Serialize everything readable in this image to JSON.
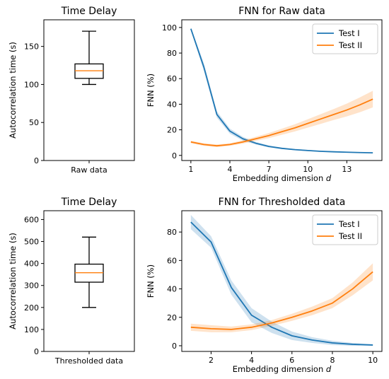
{
  "colors": {
    "test_i": "#1f77b4",
    "test_ii": "#ff7f0e",
    "axis": "#000000"
  },
  "chart_data": [
    {
      "type": "box",
      "title": "Time Delay",
      "ylabel": "Autocorrelation time (s)",
      "categories": [
        "Raw data"
      ],
      "ylim": [
        0,
        185
      ],
      "yticks": [
        0,
        50,
        100,
        150
      ],
      "box": {
        "whisker_low": 100,
        "q1": 108,
        "median": 118,
        "q3": 127,
        "whisker_high": 170
      },
      "grid": false
    },
    {
      "type": "line",
      "title": "FNN for Raw data",
      "xlabel": "Embedding dimension",
      "xlabel_var": "d",
      "ylabel": "FNN (%)",
      "xlim": [
        0.3,
        15.7
      ],
      "ylim": [
        -4,
        106
      ],
      "xticks": [
        1,
        4,
        7,
        10,
        13
      ],
      "yticks": [
        0,
        20,
        40,
        60,
        80,
        100
      ],
      "legend": "top-right",
      "grid": false,
      "x": [
        1,
        2,
        3,
        4,
        5,
        6,
        7,
        8,
        9,
        10,
        11,
        12,
        13,
        14,
        15
      ],
      "series": [
        {
          "name": "Test I",
          "color_key": "test_i",
          "values": [
            99,
            69,
            32,
            19,
            13,
            9.5,
            7,
            5.5,
            4.5,
            3.8,
            3.2,
            2.8,
            2.5,
            2.2,
            2
          ],
          "band": [
            1,
            3,
            2.5,
            2,
            1.5,
            1,
            0.8,
            0.6,
            0.5,
            0.5,
            0.4,
            0.4,
            0.3,
            0.3,
            0.3
          ]
        },
        {
          "name": "Test II",
          "color_key": "test_ii",
          "values": [
            10.5,
            8.5,
            7.5,
            8.5,
            10.5,
            13,
            15.5,
            18.5,
            21.5,
            25,
            28.5,
            32,
            35.5,
            39.5,
            44
          ],
          "band": [
            1,
            1,
            1,
            1,
            1.3,
            1.6,
            2,
            2.4,
            2.8,
            3.3,
            3.8,
            4.3,
            5,
            5.8,
            6.5
          ]
        }
      ]
    },
    {
      "type": "box",
      "title": "Time Delay",
      "ylabel": "Autocorrelation time (s)",
      "categories": [
        "Thresholded data"
      ],
      "ylim": [
        0,
        640
      ],
      "yticks": [
        0,
        100,
        200,
        300,
        400,
        500,
        600
      ],
      "box": {
        "whisker_low": 200,
        "q1": 315,
        "median": 358,
        "q3": 397,
        "whisker_high": 520
      },
      "grid": false
    },
    {
      "type": "line",
      "title": "FNN for Thresholded data",
      "xlabel": "Embedding dimension",
      "xlabel_var": "d",
      "ylabel": "FNN (%)",
      "xlim": [
        0.55,
        10.45
      ],
      "ylim": [
        -4,
        95
      ],
      "xticks": [
        2,
        4,
        6,
        8,
        10
      ],
      "yticks": [
        0,
        20,
        40,
        60,
        80
      ],
      "legend": "top-right",
      "grid": false,
      "x": [
        1,
        2,
        3,
        4,
        5,
        6,
        7,
        8,
        9,
        10
      ],
      "series": [
        {
          "name": "Test I",
          "color_key": "test_i",
          "values": [
            87,
            73,
            41,
            21.5,
            13,
            7,
            4,
            2,
            1,
            0.5
          ],
          "band": [
            5,
            4,
            5,
            5,
            4,
            3,
            2,
            1.5,
            1,
            0.5
          ]
        },
        {
          "name": "Test II",
          "color_key": "test_ii",
          "values": [
            13,
            12,
            11.5,
            13,
            16,
            20,
            24.5,
            30,
            40,
            52
          ],
          "band": [
            2.5,
            2.5,
            2,
            2,
            2,
            2.5,
            3,
            3.5,
            4.5,
            6
          ]
        }
      ]
    }
  ]
}
